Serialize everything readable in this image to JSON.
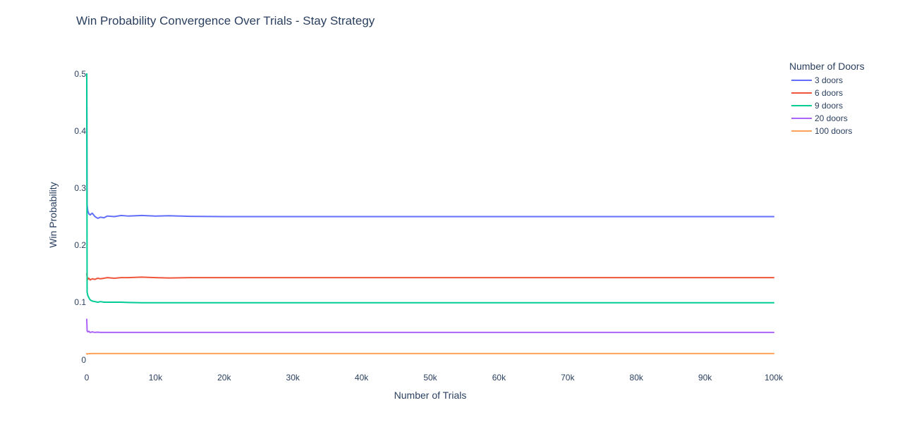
{
  "chart_data": {
    "type": "line",
    "title": "Win Probability Convergence Over Trials - Stay Strategy",
    "xlabel": "Number of Trials",
    "ylabel": "Win Probability",
    "xlim": [
      0,
      100000
    ],
    "ylim": [
      0,
      0.5
    ],
    "xticks": [
      0,
      10000,
      20000,
      30000,
      40000,
      50000,
      60000,
      70000,
      80000,
      90000,
      100000
    ],
    "xtick_labels": [
      "0",
      "10k",
      "20k",
      "30k",
      "40k",
      "50k",
      "60k",
      "70k",
      "80k",
      "90k",
      "100k"
    ],
    "yticks": [
      0,
      0.1,
      0.2,
      0.3,
      0.4,
      0.5
    ],
    "ytick_labels": [
      "0",
      "0.1",
      "0.2",
      "0.3",
      "0.4",
      "0.5"
    ],
    "grid": false,
    "legend": {
      "title": "Number of Doors",
      "placement": "top-right-outside"
    },
    "series": [
      {
        "name": "3 doors",
        "color": "#636efa",
        "x": [
          1,
          50,
          150,
          300,
          500,
          800,
          1200,
          1600,
          2000,
          2500,
          3000,
          4000,
          5000,
          6000,
          8000,
          10000,
          12000,
          15000,
          20000,
          30000,
          50000,
          70000,
          100000
        ],
        "y": [
          0.5,
          0.27,
          0.26,
          0.255,
          0.253,
          0.256,
          0.25,
          0.247,
          0.249,
          0.248,
          0.251,
          0.25,
          0.252,
          0.251,
          0.252,
          0.251,
          0.2515,
          0.2505,
          0.25,
          0.25,
          0.25,
          0.25,
          0.25
        ]
      },
      {
        "name": "6 doors",
        "color": "#EF553B",
        "x": [
          1,
          50,
          150,
          300,
          500,
          800,
          1200,
          1600,
          2000,
          2500,
          3000,
          4000,
          5000,
          6000,
          8000,
          10000,
          12000,
          15000,
          20000,
          30000,
          50000,
          70000,
          100000
        ],
        "y": [
          0.15,
          0.145,
          0.14,
          0.142,
          0.139,
          0.141,
          0.14,
          0.142,
          0.141,
          0.142,
          0.143,
          0.142,
          0.143,
          0.143,
          0.144,
          0.143,
          0.1425,
          0.143,
          0.143,
          0.143,
          0.143,
          0.143,
          0.143
        ]
      },
      {
        "name": "9 doors",
        "color": "#00cc96",
        "x": [
          1,
          50,
          150,
          300,
          500,
          800,
          1200,
          1600,
          2000,
          2500,
          3000,
          4000,
          5000,
          6000,
          8000,
          10000,
          12000,
          15000,
          20000,
          30000,
          50000,
          70000,
          100000
        ],
        "y": [
          0.5,
          0.118,
          0.112,
          0.108,
          0.104,
          0.102,
          0.101,
          0.1,
          0.101,
          0.1,
          0.1,
          0.1,
          0.1,
          0.0995,
          0.099,
          0.099,
          0.099,
          0.099,
          0.099,
          0.099,
          0.099,
          0.099,
          0.099
        ]
      },
      {
        "name": "20 doors",
        "color": "#ab63fa",
        "x": [
          1,
          50,
          150,
          300,
          500,
          800,
          1200,
          1600,
          2000,
          2500,
          3000,
          4000,
          5000,
          6000,
          8000,
          10000,
          12000,
          15000,
          20000,
          30000,
          50000,
          70000,
          100000
        ],
        "y": [
          0.07,
          0.05,
          0.048,
          0.049,
          0.047,
          0.048,
          0.047,
          0.0475,
          0.047,
          0.047,
          0.047,
          0.047,
          0.047,
          0.047,
          0.047,
          0.047,
          0.047,
          0.047,
          0.047,
          0.047,
          0.047,
          0.047,
          0.047
        ]
      },
      {
        "name": "100 doors",
        "color": "#FFA15A",
        "x": [
          1,
          50,
          150,
          300,
          500,
          800,
          1200,
          1600,
          2000,
          2500,
          3000,
          4000,
          5000,
          6000,
          8000,
          10000,
          12000,
          15000,
          20000,
          30000,
          50000,
          70000,
          100000
        ],
        "y": [
          0.01,
          0.009,
          0.0095,
          0.0098,
          0.0099,
          0.01,
          0.0101,
          0.0101,
          0.01,
          0.0101,
          0.0101,
          0.0101,
          0.0101,
          0.0101,
          0.0101,
          0.0101,
          0.0101,
          0.0101,
          0.0101,
          0.0101,
          0.0101,
          0.0101,
          0.0101
        ]
      }
    ]
  }
}
